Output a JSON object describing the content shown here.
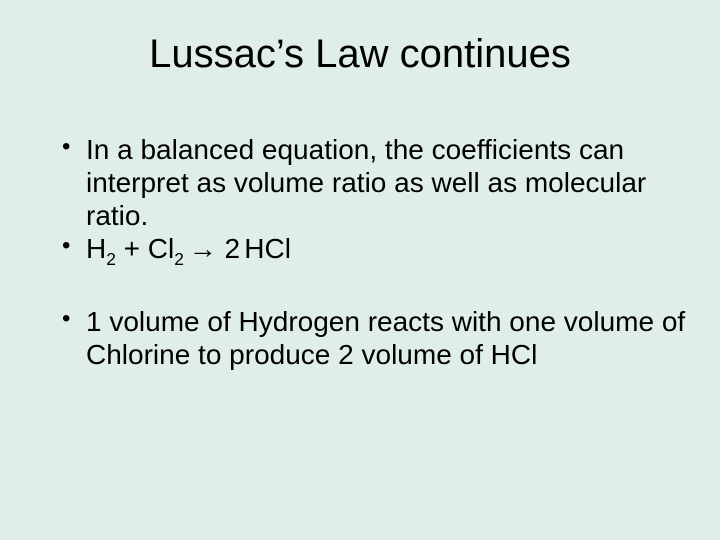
{
  "background_color": "#dfeeea",
  "text_color": "#000000",
  "title": {
    "text": "Lussac’s Law continues",
    "fontsize": 40,
    "fontweight": "normal",
    "align": "center"
  },
  "bullets": {
    "fontsize": 28,
    "items": [
      {
        "text": "In a balanced equation, the coefficients can interpret as volume ratio as well as molecular ratio."
      },
      {
        "equation": {
          "parts": [
            {
              "t": "H"
            },
            {
              "sub": "2"
            },
            {
              "t": " + Cl"
            },
            {
              "sub": "2 "
            },
            {
              "t": "→ 2"
            },
            {
              "thin": true
            },
            {
              "t": "HCl"
            }
          ]
        }
      },
      {
        "spacer": true
      },
      {
        "text": "1 volume of Hydrogen reacts with one volume of Chlorine to produce 2 volume of HCl"
      }
    ]
  }
}
